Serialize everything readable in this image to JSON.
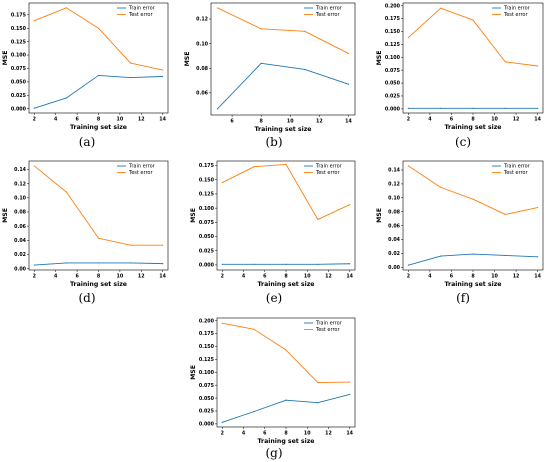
{
  "colors": {
    "train": "#1f77b4",
    "test": "#ff7f0e"
  },
  "labels": {
    "xlabel": "Training set size",
    "ylabel": "MSE",
    "train": "Train error",
    "test": "Test error"
  },
  "chart_data": [
    {
      "type": "line",
      "caption": "(a)",
      "xlabel": "Training set size",
      "ylabel": "MSE",
      "xlim": [
        1.5,
        14.5
      ],
      "ylim": [
        -0.008,
        0.197
      ],
      "xticks": [
        2,
        4,
        6,
        8,
        10,
        12,
        14
      ],
      "yticks": [
        0.0,
        0.025,
        0.05,
        0.075,
        0.1,
        0.125,
        0.15,
        0.175
      ],
      "ytick_labels": [
        "0.000",
        "0.025",
        "0.050",
        "0.075",
        "0.100",
        "0.125",
        "0.150",
        "0.175"
      ],
      "x": [
        2,
        5,
        8,
        11,
        14
      ],
      "series": [
        {
          "name": "Train error",
          "values": [
            0.001,
            0.02,
            0.062,
            0.058,
            0.06
          ]
        },
        {
          "name": "Test error",
          "values": [
            0.164,
            0.188,
            0.15,
            0.085,
            0.072
          ]
        }
      ],
      "legend": "top-right",
      "grid": false
    },
    {
      "type": "line",
      "caption": "(b)",
      "xlabel": "Training set size",
      "ylabel": "MSE",
      "xlim": [
        4.55,
        14.45
      ],
      "ylim": [
        0.042,
        0.133
      ],
      "xticks": [
        6,
        8,
        10,
        12,
        14
      ],
      "yticks": [
        0.06,
        0.08,
        0.1,
        0.12
      ],
      "ytick_labels": [
        "0.06",
        "0.08",
        "0.10",
        "0.12"
      ],
      "x": [
        5,
        8,
        11,
        14
      ],
      "series": [
        {
          "name": "Train error",
          "values": [
            0.047,
            0.084,
            0.079,
            0.067
          ]
        },
        {
          "name": "Test error",
          "values": [
            0.129,
            0.112,
            0.11,
            0.092
          ]
        }
      ],
      "legend": "top-right",
      "grid": false
    },
    {
      "type": "line",
      "caption": "(c)",
      "xlabel": "Training set size",
      "ylabel": "MSE",
      "xlim": [
        1.5,
        14.5
      ],
      "ylim": [
        -0.008,
        0.205
      ],
      "xticks": [
        2,
        4,
        6,
        8,
        10,
        12,
        14
      ],
      "yticks": [
        0.0,
        0.025,
        0.05,
        0.075,
        0.1,
        0.125,
        0.15,
        0.175,
        0.2
      ],
      "ytick_labels": [
        "0.000",
        "0.025",
        "0.050",
        "0.075",
        "0.100",
        "0.125",
        "0.150",
        "0.175",
        "0.200"
      ],
      "x": [
        2,
        5,
        8,
        11,
        14
      ],
      "series": [
        {
          "name": "Train error",
          "values": [
            0.001,
            0.001,
            0.001,
            0.001,
            0.001
          ]
        },
        {
          "name": "Test error",
          "values": [
            0.138,
            0.195,
            0.172,
            0.091,
            0.083
          ]
        }
      ],
      "legend": "top-right",
      "grid": false
    },
    {
      "type": "line",
      "caption": "(d)",
      "xlabel": "Training set size",
      "ylabel": "MSE",
      "xlim": [
        1.5,
        14.5
      ],
      "ylim": [
        -0.002,
        0.152
      ],
      "xticks": [
        2,
        4,
        6,
        8,
        10,
        12,
        14
      ],
      "yticks": [
        0.0,
        0.02,
        0.04,
        0.06,
        0.08,
        0.1,
        0.12,
        0.14
      ],
      "ytick_labels": [
        "0.00",
        "0.02",
        "0.04",
        "0.06",
        "0.08",
        "0.10",
        "0.12",
        "0.14"
      ],
      "x": [
        2,
        5,
        8,
        11,
        14
      ],
      "series": [
        {
          "name": "Train error",
          "values": [
            0.005,
            0.008,
            0.008,
            0.008,
            0.007
          ]
        },
        {
          "name": "Test error",
          "values": [
            0.145,
            0.108,
            0.043,
            0.033,
            0.033
          ]
        }
      ],
      "legend": "top-right",
      "grid": false
    },
    {
      "type": "line",
      "caption": "(e)",
      "xlabel": "Training set size",
      "ylabel": "MSE",
      "xlim": [
        1.5,
        14.5
      ],
      "ylim": [
        -0.009,
        0.183
      ],
      "xticks": [
        2,
        4,
        6,
        8,
        10,
        12,
        14
      ],
      "yticks": [
        0.0,
        0.025,
        0.05,
        0.075,
        0.1,
        0.125,
        0.15,
        0.175
      ],
      "ytick_labels": [
        "0.000",
        "0.025",
        "0.050",
        "0.075",
        "0.100",
        "0.125",
        "0.150",
        "0.175"
      ],
      "x": [
        2,
        5,
        8,
        11,
        14
      ],
      "series": [
        {
          "name": "Train error",
          "values": [
            0.001,
            0.001,
            0.001,
            0.001,
            0.002
          ]
        },
        {
          "name": "Test error",
          "values": [
            0.145,
            0.173,
            0.177,
            0.08,
            0.106
          ]
        }
      ],
      "legend": "top-right",
      "grid": false
    },
    {
      "type": "line",
      "caption": "(f)",
      "xlabel": "Training set size",
      "ylabel": "MSE",
      "xlim": [
        1.5,
        14.5
      ],
      "ylim": [
        -0.004,
        0.153
      ],
      "xticks": [
        2,
        4,
        6,
        8,
        10,
        12,
        14
      ],
      "yticks": [
        0.0,
        0.02,
        0.04,
        0.06,
        0.08,
        0.1,
        0.12,
        0.14
      ],
      "ytick_labels": [
        "0.00",
        "0.02",
        "0.04",
        "0.06",
        "0.08",
        "0.10",
        "0.12",
        "0.14"
      ],
      "x": [
        2,
        5,
        8,
        11,
        14
      ],
      "series": [
        {
          "name": "Train error",
          "values": [
            0.003,
            0.016,
            0.019,
            0.017,
            0.015
          ]
        },
        {
          "name": "Test error",
          "values": [
            0.146,
            0.115,
            0.098,
            0.076,
            0.086
          ]
        }
      ],
      "legend": "top-right",
      "grid": false
    },
    {
      "type": "line",
      "caption": "(g)",
      "xlabel": "Training set size",
      "ylabel": "MSE",
      "xlim": [
        1.5,
        14.5
      ],
      "ylim": [
        -0.006,
        0.205
      ],
      "xticks": [
        2,
        4,
        6,
        8,
        10,
        12,
        14
      ],
      "yticks": [
        0.0,
        0.025,
        0.05,
        0.075,
        0.1,
        0.125,
        0.15,
        0.175,
        0.2
      ],
      "ytick_labels": [
        "0.000",
        "0.025",
        "0.050",
        "0.075",
        "0.100",
        "0.125",
        "0.150",
        "0.175",
        "0.200"
      ],
      "x": [
        2,
        5,
        8,
        11,
        14
      ],
      "series": [
        {
          "name": "Train error",
          "values": [
            0.003,
            0.024,
            0.046,
            0.041,
            0.057
          ]
        },
        {
          "name": "Test error",
          "values": [
            0.195,
            0.183,
            0.143,
            0.08,
            0.081
          ]
        }
      ],
      "legend": "top-right",
      "grid": false
    }
  ]
}
